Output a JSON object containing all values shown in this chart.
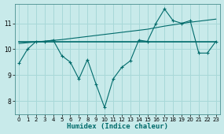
{
  "title": "",
  "xlabel": "Humidex (Indice chaleur)",
  "ylabel": "",
  "bg_color": "#c8eaea",
  "line_color": "#006b6b",
  "grid_color": "#a8d8d8",
  "xlim": [
    -0.5,
    23.5
  ],
  "ylim": [
    7.5,
    11.75
  ],
  "yticks": [
    8,
    9,
    10,
    11
  ],
  "xticks": [
    0,
    1,
    2,
    3,
    4,
    5,
    6,
    7,
    8,
    9,
    10,
    11,
    12,
    13,
    14,
    15,
    16,
    17,
    18,
    19,
    20,
    21,
    22,
    23
  ],
  "line1_x": [
    0,
    1,
    2,
    3,
    4,
    5,
    6,
    7,
    8,
    9,
    10,
    11,
    12,
    13,
    14,
    15,
    16,
    17,
    18,
    19,
    20,
    21,
    22,
    23
  ],
  "line1_y": [
    9.45,
    10.0,
    10.3,
    10.3,
    10.35,
    9.75,
    9.5,
    8.85,
    9.6,
    8.65,
    7.75,
    8.85,
    9.3,
    9.55,
    10.35,
    10.3,
    11.0,
    11.55,
    11.1,
    11.0,
    11.1,
    9.85,
    9.85,
    10.3
  ],
  "line2_x": [
    0,
    1,
    2,
    3,
    4,
    5,
    6,
    7,
    8,
    9,
    10,
    11,
    12,
    13,
    14,
    15,
    16,
    17,
    18,
    19,
    20,
    21,
    22,
    23
  ],
  "line2_y": [
    10.3,
    10.3,
    10.3,
    10.3,
    10.3,
    10.3,
    10.3,
    10.3,
    10.3,
    10.3,
    10.3,
    10.3,
    10.3,
    10.3,
    10.3,
    10.3,
    10.3,
    10.3,
    10.3,
    10.3,
    10.3,
    10.3,
    10.3,
    10.3
  ],
  "line3_x": [
    0,
    1,
    2,
    3,
    4,
    5,
    6,
    7,
    8,
    9,
    10,
    11,
    12,
    13,
    14,
    15,
    16,
    17,
    18,
    19,
    20,
    21,
    22,
    23
  ],
  "line3_y": [
    10.22,
    10.25,
    10.28,
    10.31,
    10.34,
    10.37,
    10.41,
    10.45,
    10.49,
    10.53,
    10.57,
    10.61,
    10.65,
    10.69,
    10.73,
    10.77,
    10.83,
    10.89,
    10.94,
    10.99,
    11.04,
    11.08,
    11.12,
    11.16
  ]
}
